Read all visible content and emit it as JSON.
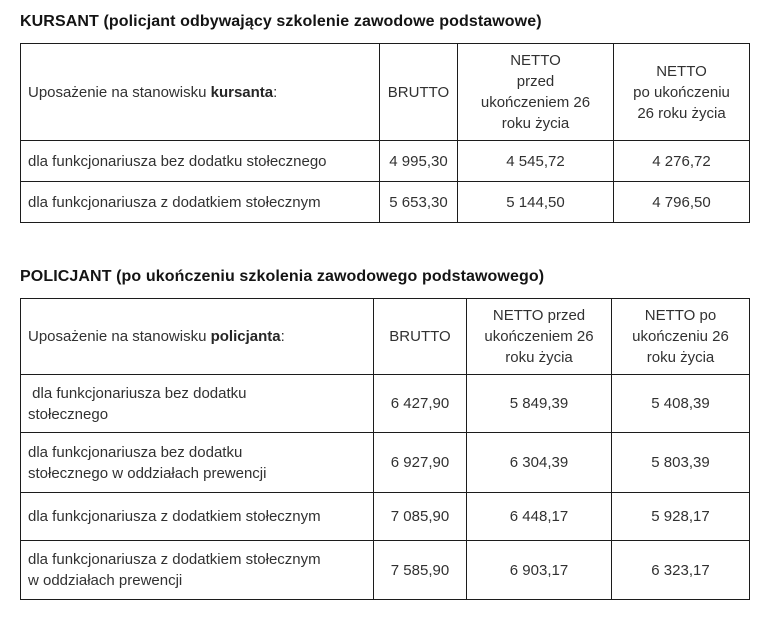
{
  "tables": [
    {
      "title": "KURSANT (policjant odbywający szkolenie zawodowe podstawowe)",
      "header": {
        "label_prefix": "Uposażenie na stanowisku ",
        "label_bold": "kursanta",
        "label_suffix": ":",
        "brutto": "BRUTTO",
        "netto_before": "NETTO\nprzed\nukończeniem 26\nroku życia",
        "netto_after": "NETTO\npo ukończeniu\n26 roku życia"
      },
      "rows": [
        {
          "label": "dla funkcjonariusza bez dodatku stołecznego",
          "brutto": "4 995,30",
          "netto_before": "4 545,72",
          "netto_after": "4 276,72"
        },
        {
          "label": "dla funkcjonariusza z dodatkiem stołecznym",
          "brutto": "5 653,30",
          "netto_before": "5 144,50",
          "netto_after": "4 796,50"
        }
      ]
    },
    {
      "title": "POLICJANT (po ukończeniu szkolenia zawodowego podstawowego)",
      "header": {
        "label_prefix": "Uposażenie na stanowisku ",
        "label_bold": "policjanta",
        "label_suffix": ":",
        "brutto": "BRUTTO",
        "netto_before": "NETTO przed\nukończeniem 26\nroku życia",
        "netto_after": "NETTO po\nukończeniu 26\nroku życia"
      },
      "rows": [
        {
          "label": " dla funkcjonariusza bez dodatku\nstołecznego",
          "brutto": "6 427,90",
          "netto_before": "5 849,39",
          "netto_after": "5 408,39"
        },
        {
          "label": "dla funkcjonariusza bez dodatku\nstołecznego w oddziałach prewencji",
          "brutto": "6 927,90",
          "netto_before": "6 304,39",
          "netto_after": "5 803,39"
        },
        {
          "label": "dla funkcjonariusza z dodatkiem stołecznym",
          "brutto": "7 085,90",
          "netto_before": "6 448,17",
          "netto_after": "5 928,17"
        },
        {
          "label": "dla funkcjonariusza z dodatkiem stołecznym\nw oddziałach prewencji",
          "brutto": "7 585,90",
          "netto_before": "6 903,17",
          "netto_after": "6 323,17"
        }
      ]
    }
  ]
}
